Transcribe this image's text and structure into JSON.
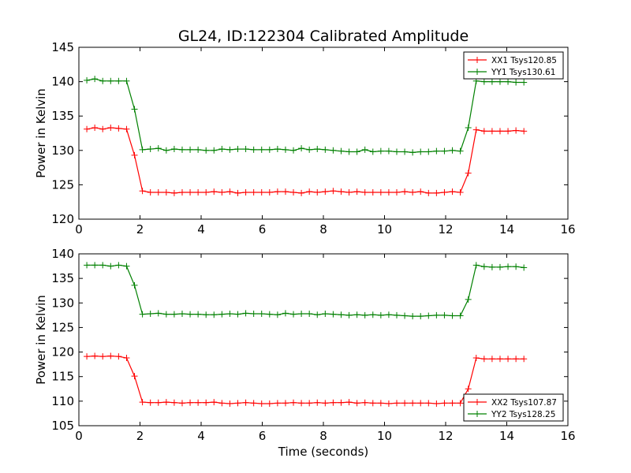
{
  "title": "GL24, ID:122304 Calibrated Amplitude",
  "colors": {
    "red": "#ff0000",
    "green": "#008000"
  },
  "chart_data": [
    {
      "type": "line",
      "ylabel": "Power in Kelvin",
      "xlabel": "",
      "xlim": [
        0,
        16
      ],
      "ylim": [
        120,
        145
      ],
      "xticks": [
        "0",
        "2",
        "4",
        "6",
        "8",
        "10",
        "12",
        "14",
        "16"
      ],
      "yticks": [
        "120",
        "125",
        "130",
        "135",
        "140",
        "145"
      ],
      "legend_position": "top-right",
      "series": [
        {
          "name": "XX1 Tsys120.85",
          "color": "#ff0000",
          "x": [
            0.26,
            0.52,
            0.78,
            1.04,
            1.3,
            1.56,
            1.82,
            2.08,
            2.34,
            2.6,
            2.86,
            3.12,
            3.38,
            3.64,
            3.9,
            4.16,
            4.42,
            4.68,
            4.94,
            5.2,
            5.46,
            5.72,
            5.98,
            6.24,
            6.5,
            6.76,
            7.02,
            7.28,
            7.54,
            7.8,
            8.06,
            8.32,
            8.58,
            8.84,
            9.1,
            9.36,
            9.62,
            9.88,
            10.14,
            10.4,
            10.66,
            10.92,
            11.18,
            11.44,
            11.7,
            11.96,
            12.22,
            12.48,
            12.74,
            13.0,
            13.26,
            13.52,
            13.78,
            14.04,
            14.3,
            14.56
          ],
          "values": [
            133.1,
            133.3,
            133.1,
            133.3,
            133.2,
            133.1,
            129.3,
            124.1,
            123.9,
            123.9,
            123.9,
            123.8,
            123.9,
            123.9,
            123.9,
            123.9,
            124.0,
            123.9,
            124.0,
            123.8,
            123.9,
            123.9,
            123.9,
            123.9,
            124.0,
            124.0,
            123.9,
            123.8,
            124.0,
            123.9,
            124.0,
            124.1,
            124.0,
            123.9,
            124.0,
            123.9,
            123.9,
            123.9,
            123.9,
            123.9,
            124.0,
            123.9,
            124.0,
            123.8,
            123.8,
            123.9,
            124.0,
            123.9,
            126.7,
            133.0,
            132.8,
            132.8,
            132.8,
            132.8,
            132.9,
            132.8
          ]
        },
        {
          "name": "YY1 Tsys130.61",
          "color": "#008000",
          "x": [
            0.26,
            0.52,
            0.78,
            1.04,
            1.3,
            1.56,
            1.82,
            2.08,
            2.34,
            2.6,
            2.86,
            3.12,
            3.38,
            3.64,
            3.9,
            4.16,
            4.42,
            4.68,
            4.94,
            5.2,
            5.46,
            5.72,
            5.98,
            6.24,
            6.5,
            6.76,
            7.02,
            7.28,
            7.54,
            7.8,
            8.06,
            8.32,
            8.58,
            8.84,
            9.1,
            9.36,
            9.62,
            9.88,
            10.14,
            10.4,
            10.66,
            10.92,
            11.18,
            11.44,
            11.7,
            11.96,
            12.22,
            12.48,
            12.74,
            13.0,
            13.26,
            13.52,
            13.78,
            14.04,
            14.3,
            14.56
          ],
          "values": [
            140.2,
            140.4,
            140.1,
            140.1,
            140.1,
            140.1,
            136.0,
            130.1,
            130.2,
            130.3,
            130.0,
            130.2,
            130.1,
            130.1,
            130.1,
            130.0,
            130.0,
            130.2,
            130.1,
            130.2,
            130.2,
            130.1,
            130.1,
            130.1,
            130.2,
            130.1,
            130.0,
            130.3,
            130.1,
            130.2,
            130.1,
            130.0,
            129.9,
            129.8,
            129.8,
            130.1,
            129.8,
            129.9,
            129.9,
            129.8,
            129.8,
            129.7,
            129.8,
            129.8,
            129.9,
            129.9,
            130.0,
            129.9,
            133.3,
            140.1,
            140.0,
            140.0,
            140.0,
            140.0,
            139.9,
            139.9
          ]
        }
      ]
    },
    {
      "type": "line",
      "ylabel": "Power in Kelvin",
      "xlabel": "Time (seconds)",
      "xlim": [
        0,
        16
      ],
      "ylim": [
        105,
        140
      ],
      "xticks": [
        "0",
        "2",
        "4",
        "6",
        "8",
        "10",
        "12",
        "14",
        "16"
      ],
      "yticks": [
        "105",
        "110",
        "115",
        "120",
        "125",
        "130",
        "135",
        "140"
      ],
      "legend_position": "bottom-right",
      "series": [
        {
          "name": "XX2 Tsys107.87",
          "color": "#ff0000",
          "x": [
            0.26,
            0.52,
            0.78,
            1.04,
            1.3,
            1.56,
            1.82,
            2.08,
            2.34,
            2.6,
            2.86,
            3.12,
            3.38,
            3.64,
            3.9,
            4.16,
            4.42,
            4.68,
            4.94,
            5.2,
            5.46,
            5.72,
            5.98,
            6.24,
            6.5,
            6.76,
            7.02,
            7.28,
            7.54,
            7.8,
            8.06,
            8.32,
            8.58,
            8.84,
            9.1,
            9.36,
            9.62,
            9.88,
            10.14,
            10.4,
            10.66,
            10.92,
            11.18,
            11.44,
            11.7,
            11.96,
            12.22,
            12.48,
            12.74,
            13.0,
            13.26,
            13.52,
            13.78,
            14.04,
            14.3,
            14.56
          ],
          "values": [
            119.1,
            119.2,
            119.1,
            119.2,
            119.1,
            118.8,
            115.1,
            109.8,
            109.7,
            109.7,
            109.8,
            109.7,
            109.6,
            109.7,
            109.7,
            109.7,
            109.8,
            109.6,
            109.5,
            109.6,
            109.7,
            109.6,
            109.5,
            109.5,
            109.6,
            109.6,
            109.7,
            109.6,
            109.6,
            109.7,
            109.6,
            109.7,
            109.7,
            109.8,
            109.6,
            109.7,
            109.6,
            109.6,
            109.5,
            109.6,
            109.6,
            109.6,
            109.6,
            109.6,
            109.5,
            109.6,
            109.6,
            109.6,
            112.5,
            118.8,
            118.6,
            118.6,
            118.6,
            118.6,
            118.6,
            118.6
          ]
        },
        {
          "name": "YY2 Tsys128.25",
          "color": "#008000",
          "x": [
            0.26,
            0.52,
            0.78,
            1.04,
            1.3,
            1.56,
            1.82,
            2.08,
            2.34,
            2.6,
            2.86,
            3.12,
            3.38,
            3.64,
            3.9,
            4.16,
            4.42,
            4.68,
            4.94,
            5.2,
            5.46,
            5.72,
            5.98,
            6.24,
            6.5,
            6.76,
            7.02,
            7.28,
            7.54,
            7.8,
            8.06,
            8.32,
            8.58,
            8.84,
            9.1,
            9.36,
            9.62,
            9.88,
            10.14,
            10.4,
            10.66,
            10.92,
            11.18,
            11.44,
            11.7,
            11.96,
            12.22,
            12.48,
            12.74,
            13.0,
            13.26,
            13.52,
            13.78,
            14.04,
            14.3,
            14.56
          ],
          "values": [
            137.7,
            137.7,
            137.7,
            137.5,
            137.7,
            137.5,
            133.6,
            127.7,
            127.8,
            127.9,
            127.7,
            127.7,
            127.8,
            127.7,
            127.7,
            127.6,
            127.6,
            127.7,
            127.8,
            127.7,
            127.9,
            127.8,
            127.8,
            127.7,
            127.6,
            127.9,
            127.7,
            127.8,
            127.8,
            127.6,
            127.8,
            127.7,
            127.6,
            127.5,
            127.6,
            127.5,
            127.6,
            127.5,
            127.6,
            127.5,
            127.4,
            127.3,
            127.3,
            127.4,
            127.5,
            127.5,
            127.4,
            127.4,
            130.7,
            137.7,
            137.4,
            137.3,
            137.3,
            137.4,
            137.4,
            137.2
          ]
        }
      ]
    }
  ]
}
